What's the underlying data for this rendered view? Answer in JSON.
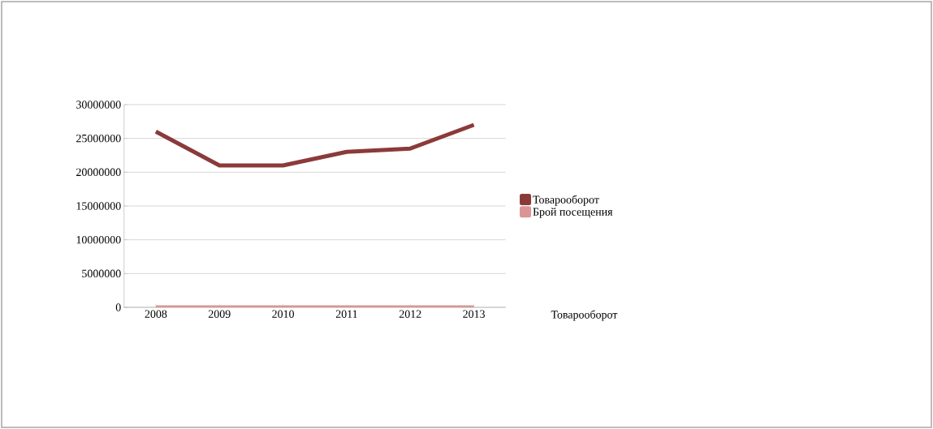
{
  "chart_data": {
    "type": "line",
    "categories": [
      "2008",
      "2009",
      "2010",
      "2011",
      "2012",
      "2013"
    ],
    "series": [
      {
        "name": "Товарооборот",
        "color": "#8b3a3a",
        "values": [
          26000000,
          21000000,
          21000000,
          23000000,
          23500000,
          27000000
        ]
      },
      {
        "name": "Брой посещения",
        "color": "#d99694",
        "values": [
          0,
          0,
          0,
          0,
          0,
          0
        ]
      }
    ],
    "ylim": [
      0,
      30000000
    ],
    "yticks": [
      0,
      5000000,
      10000000,
      15000000,
      20000000,
      25000000,
      30000000
    ],
    "grid": "y",
    "legend": "right",
    "annotations": [
      "Товарооборот"
    ]
  }
}
